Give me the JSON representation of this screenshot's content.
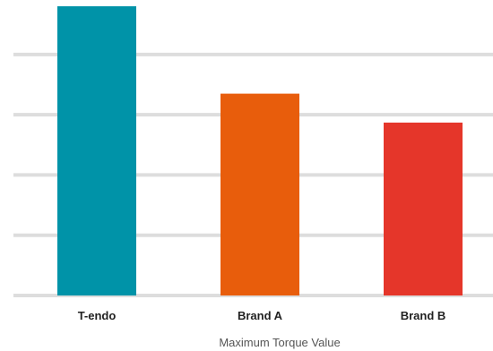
{
  "chart_data": {
    "type": "bar",
    "title": "",
    "xlabel": "Maximum Torque Value",
    "ylabel": "",
    "categories": [
      "T-endo",
      "Brand A",
      "Brand B"
    ],
    "values": [
      4.8,
      3.35,
      2.87
    ],
    "ylim": [
      0,
      4.8
    ],
    "grid": true,
    "grid_values": [
      0,
      1,
      2,
      3,
      4
    ],
    "y_tick_labels_shown": false,
    "legend": "none",
    "colors": [
      "#0093a8",
      "#e85d0c",
      "#e5362a"
    ],
    "grid_color": "#dddddd"
  }
}
